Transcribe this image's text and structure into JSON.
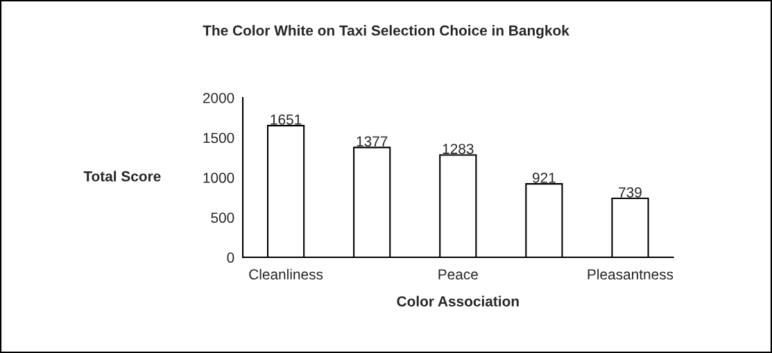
{
  "chart_data": {
    "type": "bar",
    "title": "The Color White on Taxi Selection Choice in Bangkok",
    "xlabel": "Color Association",
    "ylabel": "Total Score",
    "categories": [
      "Cleanliness",
      null,
      "Peace",
      null,
      "Pleasantness"
    ],
    "values": [
      1651,
      1377,
      1283,
      921,
      739
    ],
    "color": "#ffffff",
    "ylim": [
      0,
      2000
    ],
    "yticks": [
      0,
      500,
      1000,
      1500,
      2000
    ],
    "data_labels": true
  }
}
